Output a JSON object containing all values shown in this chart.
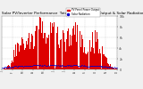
{
  "title": "Solar PV/Inverter Performance  Total PV Panel Power Output & Solar Radiation",
  "title_fontsize": 3.0,
  "background_color": "#f0f0f0",
  "plot_bg_color": "#ffffff",
  "grid_color": "#aaaaaa",
  "bar_color": "#dd0000",
  "dot_color": "#0000cc",
  "num_bars": 200,
  "legend_labels": [
    "PV Panel Power Output",
    "Solar Radiation"
  ],
  "legend_colors": [
    "#dd0000",
    "#0000cc"
  ],
  "ylim": [
    0,
    1.0
  ],
  "y_ticks": [
    0.0,
    0.2,
    0.4,
    0.6,
    0.8,
    1.0
  ],
  "y_tick_labels": [
    "0",
    "2k",
    "4k",
    "6k",
    "8k",
    "10k"
  ]
}
